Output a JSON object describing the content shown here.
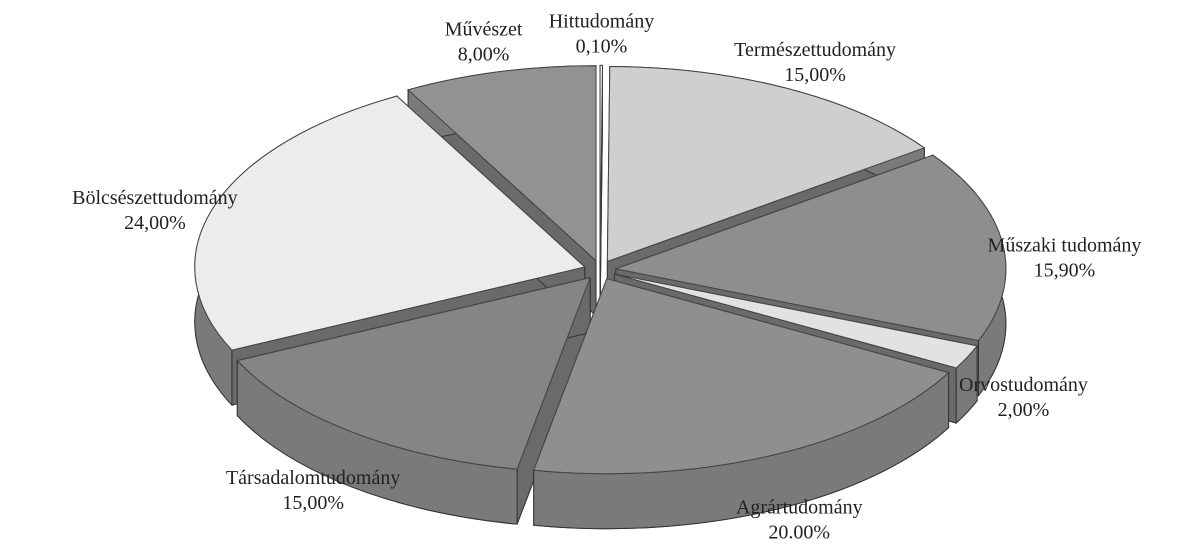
{
  "chart_data": {
    "type": "pie3d",
    "categories": [
      "Hittudomány",
      "Természettudomány",
      "Műszaki tudomány",
      "Orvostudomány",
      "Agrártudomány",
      "Társadalomtudomány",
      "Bölcsészettudomány",
      "Művészet"
    ],
    "values": [
      0.1,
      15,
      15.9,
      2,
      20,
      15,
      24,
      8
    ],
    "value_labels": [
      "0,10%",
      "15,00%",
      "15,90%",
      "2,00%",
      "20.00%",
      "15,00%",
      "24,00%",
      "8,00%"
    ],
    "colors": [
      "#f4f4f4",
      "#cfcfcf",
      "#8e8e8e",
      "#e2e2e2",
      "#8f8f8f",
      "#858585",
      "#ececec",
      "#929292"
    ]
  }
}
